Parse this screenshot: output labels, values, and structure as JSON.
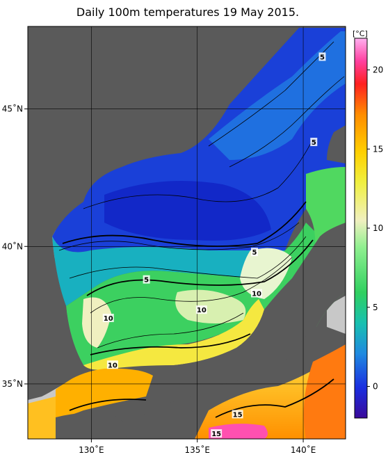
{
  "title": "Daily 100m temperatures 19 May 2015.",
  "colorbar": {
    "unit": "[°C]",
    "ticks": [
      {
        "value": 0,
        "label": "0"
      },
      {
        "value": 5,
        "label": "5"
      },
      {
        "value": 10,
        "label": "10"
      },
      {
        "value": 15,
        "label": "15"
      },
      {
        "value": 20,
        "label": "20"
      }
    ],
    "min": -2,
    "max": 22
  },
  "axes": {
    "lon_ticks": [
      {
        "value": 130,
        "label": "130˚E"
      },
      {
        "value": 135,
        "label": "135˚E"
      },
      {
        "value": 140,
        "label": "140˚E"
      }
    ],
    "lat_ticks": [
      {
        "value": 35,
        "label": "35˚N"
      },
      {
        "value": 40,
        "label": "40˚N"
      },
      {
        "value": 45,
        "label": "45˚N"
      }
    ],
    "lon_range": [
      127,
      142
    ],
    "lat_range": [
      33,
      48
    ]
  },
  "contour_labels": [
    {
      "text": "5",
      "lon": 140.9,
      "lat": 46.9
    },
    {
      "text": "5",
      "lon": 140.5,
      "lat": 43.8
    },
    {
      "text": "5",
      "lon": 137.7,
      "lat": 39.8
    },
    {
      "text": "5",
      "lon": 132.6,
      "lat": 38.8
    },
    {
      "text": "10",
      "lon": 130.8,
      "lat": 37.4
    },
    {
      "text": "10",
      "lon": 135.2,
      "lat": 37.7
    },
    {
      "text": "10",
      "lon": 137.8,
      "lat": 38.3
    },
    {
      "text": "10",
      "lon": 131.0,
      "lat": 35.7
    },
    {
      "text": "15",
      "lon": 136.9,
      "lat": 33.9
    },
    {
      "text": "15",
      "lon": 135.9,
      "lat": 33.2
    }
  ]
}
